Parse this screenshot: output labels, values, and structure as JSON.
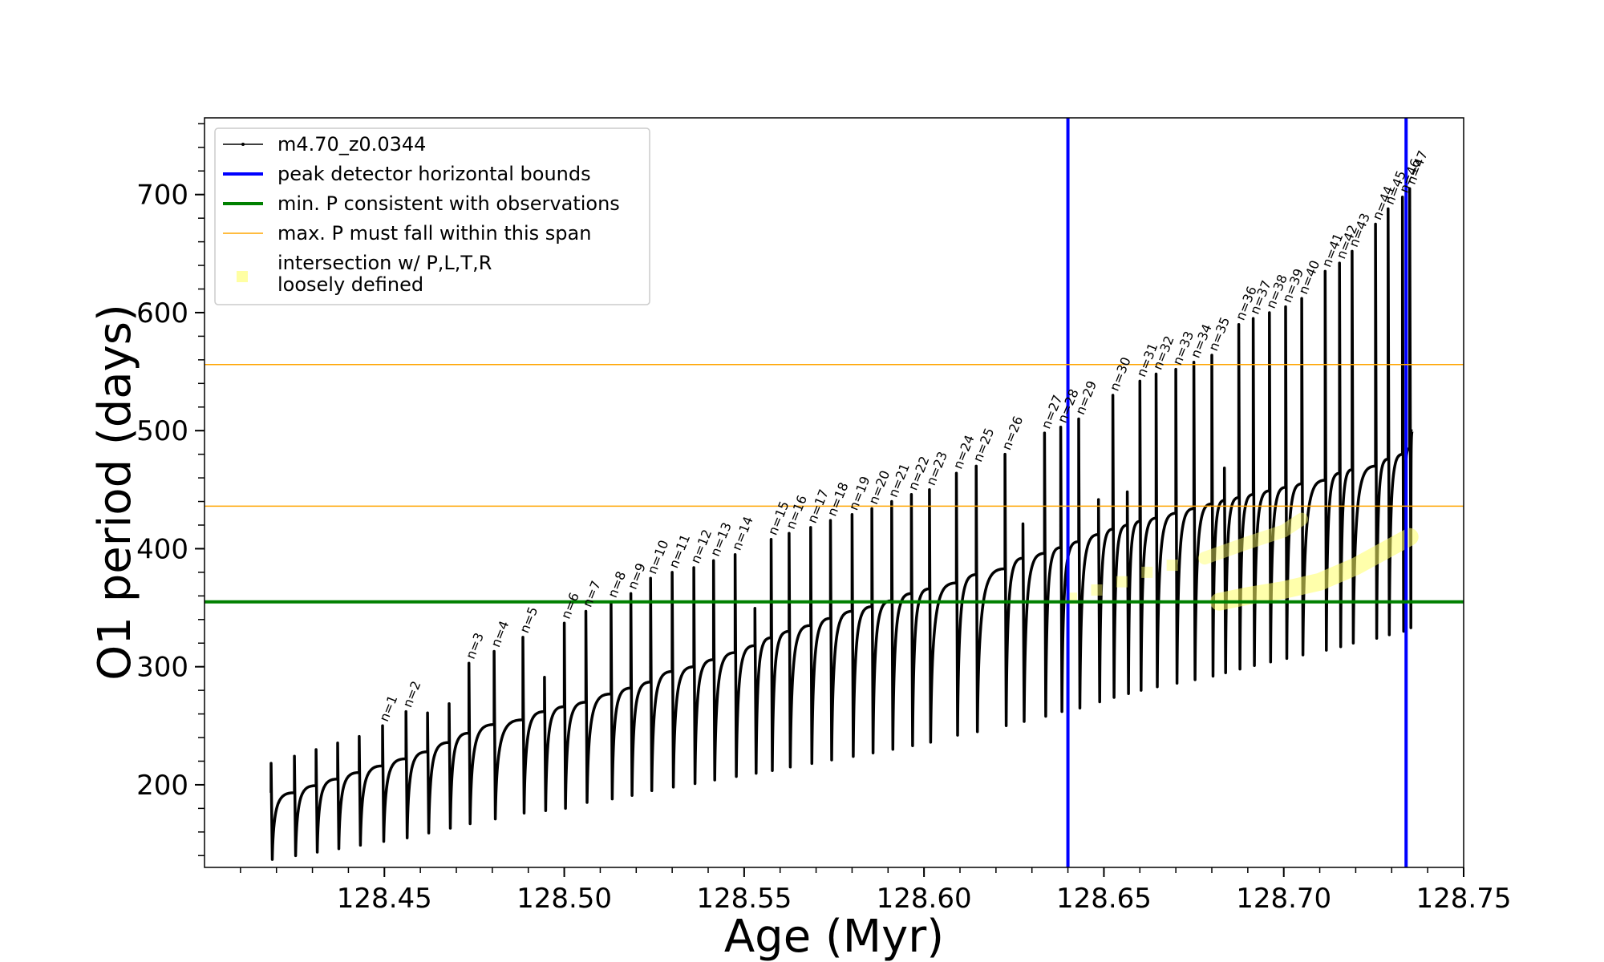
{
  "chart_data": {
    "type": "line",
    "xlabel": "Age (Myr)",
    "ylabel": "O1 period (days)",
    "xlim": [
      128.4,
      128.75
    ],
    "ylim": [
      130,
      765
    ],
    "xticks": [
      "128.45",
      "128.50",
      "128.55",
      "128.60",
      "128.65",
      "128.70",
      "128.75"
    ],
    "yticks": [
      "200",
      "300",
      "400",
      "500",
      "600",
      "700"
    ],
    "series": [
      {
        "name": "m4.70_z0.0344",
        "color": "#000000",
        "note_type": "pulse-cycle track",
        "pulses": [
          {
            "label": "n=1",
            "age": 128.4495,
            "peak": 250,
            "plateau": 222,
            "low": 152
          },
          {
            "label": "n=2",
            "age": 128.456,
            "peak": 262,
            "plateau": 228,
            "low": 155
          },
          {
            "label": "n=3",
            "age": 128.4735,
            "peak": 303,
            "plateau": 251,
            "low": 167
          },
          {
            "label": "n=4",
            "age": 128.4805,
            "peak": 313,
            "plateau": 255,
            "low": 171
          },
          {
            "label": "n=5",
            "age": 128.4885,
            "peak": 325,
            "plateau": 262,
            "low": 176
          },
          {
            "label": "n=6",
            "age": 128.5,
            "peak": 337,
            "plateau": 270,
            "low": 180
          },
          {
            "label": "n=7",
            "age": 128.506,
            "peak": 347,
            "plateau": 277,
            "low": 185
          },
          {
            "label": "n=8",
            "age": 128.513,
            "peak": 355,
            "plateau": 282,
            "low": 188
          },
          {
            "label": "n=9",
            "age": 128.5185,
            "peak": 362,
            "plateau": 287,
            "low": 191
          },
          {
            "label": "n=10",
            "age": 128.524,
            "peak": 375,
            "plateau": 296,
            "low": 195
          },
          {
            "label": "n=11",
            "age": 128.53,
            "peak": 380,
            "plateau": 300,
            "low": 198
          },
          {
            "label": "n=12",
            "age": 128.536,
            "peak": 384,
            "plateau": 306,
            "low": 201
          },
          {
            "label": "n=13",
            "age": 128.5415,
            "peak": 390,
            "plateau": 312,
            "low": 204
          },
          {
            "label": "n=14",
            "age": 128.5475,
            "peak": 395,
            "plateau": 318,
            "low": 207
          },
          {
            "label": "n=15",
            "age": 128.5575,
            "peak": 408,
            "plateau": 330,
            "low": 212
          },
          {
            "label": "n=16",
            "age": 128.5625,
            "peak": 413,
            "plateau": 335,
            "low": 215
          },
          {
            "label": "n=17",
            "age": 128.5685,
            "peak": 418,
            "plateau": 341,
            "low": 218
          },
          {
            "label": "n=18",
            "age": 128.574,
            "peak": 424,
            "plateau": 347,
            "low": 221
          },
          {
            "label": "n=19",
            "age": 128.58,
            "peak": 429,
            "plateau": 351,
            "low": 224
          },
          {
            "label": "n=20",
            "age": 128.5855,
            "peak": 434,
            "plateau": 356,
            "low": 227
          },
          {
            "label": "n=21",
            "age": 128.591,
            "peak": 440,
            "plateau": 362,
            "low": 230
          },
          {
            "label": "n=22",
            "age": 128.5965,
            "peak": 446,
            "plateau": 366,
            "low": 233
          },
          {
            "label": "n=23",
            "age": 128.6015,
            "peak": 450,
            "plateau": 371,
            "low": 236
          },
          {
            "label": "n=24",
            "age": 128.609,
            "peak": 464,
            "plateau": 378,
            "low": 242
          },
          {
            "label": "n=25",
            "age": 128.6145,
            "peak": 470,
            "plateau": 383,
            "low": 245
          },
          {
            "label": "n=26",
            "age": 128.6225,
            "peak": 480,
            "plateau": 392,
            "low": 250
          },
          {
            "label": "n=27",
            "age": 128.6335,
            "peak": 498,
            "plateau": 401,
            "low": 258
          },
          {
            "label": "n=28",
            "age": 128.638,
            "peak": 503,
            "plateau": 406,
            "low": 262
          },
          {
            "label": "n=29",
            "age": 128.643,
            "peak": 510,
            "plateau": 412,
            "low": 265
          },
          {
            "label": "n=30",
            "age": 128.6525,
            "peak": 530,
            "plateau": 420,
            "low": 274
          },
          {
            "label": "n=31",
            "age": 128.66,
            "peak": 542,
            "plateau": 426,
            "low": 280
          },
          {
            "label": "n=32",
            "age": 128.6645,
            "peak": 548,
            "plateau": 430,
            "low": 283
          },
          {
            "label": "n=33",
            "age": 128.67,
            "peak": 552,
            "plateau": 434,
            "low": 286
          },
          {
            "label": "n=34",
            "age": 128.675,
            "peak": 558,
            "plateau": 438,
            "low": 289
          },
          {
            "label": "n=35",
            "age": 128.68,
            "peak": 564,
            "plateau": 441,
            "low": 292
          },
          {
            "label": "n=36",
            "age": 128.6875,
            "peak": 590,
            "plateau": 446,
            "low": 298
          },
          {
            "label": "n=37",
            "age": 128.6915,
            "peak": 595,
            "plateau": 449,
            "low": 301
          },
          {
            "label": "n=38",
            "age": 128.696,
            "peak": 600,
            "plateau": 452,
            "low": 304
          },
          {
            "label": "n=39",
            "age": 128.7005,
            "peak": 605,
            "plateau": 455,
            "low": 307
          },
          {
            "label": "n=40",
            "age": 128.705,
            "peak": 612,
            "plateau": 458,
            "low": 310
          },
          {
            "label": "n=41",
            "age": 128.7115,
            "peak": 635,
            "plateau": 464,
            "low": 314
          },
          {
            "label": "n=42",
            "age": 128.7155,
            "peak": 642,
            "plateau": 467,
            "low": 317
          },
          {
            "label": "n=43",
            "age": 128.719,
            "peak": 652,
            "plateau": 470,
            "low": 320
          },
          {
            "label": "n=44",
            "age": 128.7255,
            "peak": 675,
            "plateau": 476,
            "low": 324
          },
          {
            "label": "n=45",
            "age": 128.729,
            "peak": 688,
            "plateau": 480,
            "low": 327
          },
          {
            "label": "n=46",
            "age": 128.733,
            "peak": 698,
            "plateau": 485,
            "low": 330
          },
          {
            "label": "n=47",
            "age": 128.735,
            "peak": 705,
            "plateau": 500,
            "low": 333
          }
        ],
        "extra_cycles": [
          128.4185,
          128.425,
          128.431,
          128.437,
          128.443,
          128.462,
          128.468,
          128.4945,
          128.553,
          128.6275,
          128.6485,
          128.6565,
          128.6835
        ]
      }
    ],
    "reference_lines": [
      {
        "name": "peak detector horizontal bounds",
        "orientation": "vertical",
        "color": "#0000ff",
        "values": [
          128.64,
          128.734
        ]
      },
      {
        "name": "min. P consistent with observations",
        "orientation": "horizontal",
        "color": "#008000",
        "values": [
          355
        ]
      },
      {
        "name": "max. P must fall within this span",
        "orientation": "horizontal",
        "color": "#ffa500",
        "values": [
          436,
          556
        ]
      }
    ],
    "highlight": {
      "name": "intersection w/ P,L,T,R\nloosely defined",
      "name_line1": "intersection w/ P,L,T,R",
      "name_line2": "loosely defined",
      "color": "#ffff66",
      "lower_band": [
        [
          128.682,
          355
        ],
        [
          128.69,
          360
        ],
        [
          128.7,
          365
        ],
        [
          128.71,
          372
        ],
        [
          128.72,
          385
        ],
        [
          128.735,
          410
        ]
      ],
      "upper_band": [
        [
          128.678,
          392
        ],
        [
          128.69,
          405
        ],
        [
          128.7,
          415
        ],
        [
          128.705,
          425
        ]
      ],
      "scattered": [
        [
          128.641,
          358
        ],
        [
          128.648,
          365
        ],
        [
          128.655,
          372
        ],
        [
          128.662,
          380
        ],
        [
          128.669,
          386
        ]
      ]
    },
    "legend": {
      "position": "upper-left",
      "entries": [
        {
          "label": "m4.70_z0.0344",
          "color": "#000000",
          "kind": "line-marker"
        },
        {
          "label": "peak detector horizontal bounds",
          "color": "#0000ff",
          "kind": "thick-line"
        },
        {
          "label": "min. P consistent with observations",
          "color": "#008000",
          "kind": "thick-line"
        },
        {
          "label": "max. P must fall within this span",
          "color": "#ffa500",
          "kind": "thin-line"
        },
        {
          "label": "intersection w/ P,L,T,R",
          "label2": "loosely defined",
          "color": "#ffff66",
          "kind": "marker"
        }
      ]
    },
    "grid": false
  }
}
